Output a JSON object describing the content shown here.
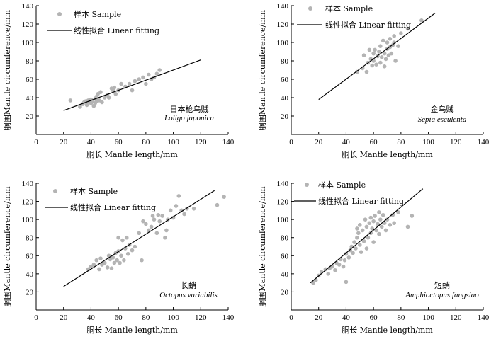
{
  "chart_data": [
    {
      "type": "scatter",
      "xlabel": "胴长 Mantle length/mm",
      "ylabel": "胴围Mantle circumference/mm",
      "xlim": [
        0,
        140
      ],
      "ylim": [
        0,
        140
      ],
      "xticks": [
        0,
        20,
        40,
        60,
        80,
        100,
        120,
        140
      ],
      "yticks": [
        20,
        40,
        60,
        80,
        100,
        120,
        140
      ],
      "legend": {
        "placement": "top-left",
        "sample_label": "样本 Sample",
        "fit_label": "线性拟合 Linear fitting"
      },
      "species_cn": "日本枪乌贼",
      "species_latin": "Loligo japonica",
      "series": [
        {
          "name": "样本 Sample",
          "kind": "points",
          "points": [
            [
              25,
              37
            ],
            [
              32,
              30
            ],
            [
              34,
              33
            ],
            [
              35,
              35
            ],
            [
              36,
              36
            ],
            [
              37,
              32
            ],
            [
              38,
              37
            ],
            [
              39,
              35
            ],
            [
              40,
              38
            ],
            [
              40,
              34
            ],
            [
              41,
              36
            ],
            [
              42,
              31
            ],
            [
              43,
              39
            ],
            [
              43,
              34
            ],
            [
              44,
              41
            ],
            [
              44,
              36
            ],
            [
              45,
              44
            ],
            [
              45,
              39
            ],
            [
              46,
              37
            ],
            [
              47,
              46
            ],
            [
              48,
              35
            ],
            [
              50,
              40
            ],
            [
              52,
              43
            ],
            [
              53,
              40
            ],
            [
              55,
              50
            ],
            [
              56,
              48
            ],
            [
              57,
              51
            ],
            [
              58,
              44
            ],
            [
              60,
              48
            ],
            [
              62,
              55
            ],
            [
              65,
              52
            ],
            [
              68,
              55
            ],
            [
              70,
              48
            ],
            [
              72,
              58
            ],
            [
              75,
              60
            ],
            [
              78,
              62
            ],
            [
              80,
              55
            ],
            [
              82,
              65
            ],
            [
              84,
              60
            ],
            [
              86,
              62
            ],
            [
              88,
              66
            ],
            [
              90,
              70
            ]
          ]
        },
        {
          "name": "线性拟合 Linear fitting",
          "kind": "line",
          "points": [
            [
              20,
              26
            ],
            [
              120,
              81
            ]
          ]
        }
      ]
    },
    {
      "type": "scatter",
      "xlabel": "胴长 Mantle length/mm",
      "ylabel": "胴围Mantle circumference/mm",
      "xlim": [
        0,
        140
      ],
      "ylim": [
        0,
        140
      ],
      "xticks": [
        0,
        20,
        40,
        60,
        80,
        100,
        120,
        140
      ],
      "yticks": [
        20,
        40,
        60,
        80,
        100,
        120,
        140
      ],
      "legend": {
        "placement": "top-left",
        "sample_label": "样本 Sample",
        "fit_label": "线性拟合 Linear fitting"
      },
      "species_cn": "金乌贼",
      "species_latin": "Sepia esculenta",
      "series": [
        {
          "name": "样本 Sample",
          "kind": "points",
          "points": [
            [
              48,
              68
            ],
            [
              52,
              72
            ],
            [
              53,
              86
            ],
            [
              55,
              68
            ],
            [
              56,
              78
            ],
            [
              57,
              92
            ],
            [
              58,
              82
            ],
            [
              59,
              75
            ],
            [
              60,
              88
            ],
            [
              60,
              80
            ],
            [
              61,
              92
            ],
            [
              62,
              76
            ],
            [
              63,
              85
            ],
            [
              64,
              90
            ],
            [
              65,
              78
            ],
            [
              65,
              96
            ],
            [
              66,
              84
            ],
            [
              67,
              102
            ],
            [
              68,
              88
            ],
            [
              68,
              74
            ],
            [
              69,
              82
            ],
            [
              70,
              93
            ],
            [
              70,
              100
            ],
            [
              71,
              86
            ],
            [
              72,
              104
            ],
            [
              72,
              95
            ],
            [
              73,
              88
            ],
            [
              74,
              97
            ],
            [
              75,
              100
            ],
            [
              75,
              107
            ],
            [
              76,
              80
            ],
            [
              78,
              96
            ],
            [
              80,
              110
            ],
            [
              85,
              115
            ],
            [
              95,
              124
            ]
          ]
        },
        {
          "name": "线性拟合 Linear fitting",
          "kind": "line",
          "points": [
            [
              20,
              38
            ],
            [
              105,
              132
            ]
          ]
        }
      ]
    },
    {
      "type": "scatter",
      "xlabel": "胴长 Mantle length/mm",
      "ylabel": "胴围Mantle circumference/mm",
      "xlim": [
        0,
        140
      ],
      "ylim": [
        0,
        140
      ],
      "xticks": [
        0,
        20,
        40,
        60,
        80,
        100,
        120,
        140
      ],
      "yticks": [
        20,
        40,
        60,
        80,
        100,
        120,
        140
      ],
      "legend": {
        "placement": "top-left",
        "sample_label": "样本 Sample",
        "fit_label": "线性拟合 Linear fitting"
      },
      "species_cn": "长蛸",
      "species_latin": "Octopus variabilis",
      "series": [
        {
          "name": "样本 Sample",
          "kind": "points",
          "points": [
            [
              38,
              45
            ],
            [
              40,
              48
            ],
            [
              42,
              50
            ],
            [
              44,
              55
            ],
            [
              46,
              45
            ],
            [
              47,
              57
            ],
            [
              48,
              50
            ],
            [
              50,
              52
            ],
            [
              52,
              47
            ],
            [
              53,
              60
            ],
            [
              54,
              56
            ],
            [
              55,
              46
            ],
            [
              56,
              58
            ],
            [
              57,
              52
            ],
            [
              58,
              63
            ],
            [
              59,
              55
            ],
            [
              60,
              65
            ],
            [
              60,
              80
            ],
            [
              61,
              52
            ],
            [
              62,
              60
            ],
            [
              63,
              77
            ],
            [
              64,
              55
            ],
            [
              65,
              68
            ],
            [
              66,
              80
            ],
            [
              67,
              62
            ],
            [
              68,
              72
            ],
            [
              70,
              66
            ],
            [
              72,
              70
            ],
            [
              75,
              85
            ],
            [
              77,
              55
            ],
            [
              78,
              98
            ],
            [
              80,
              95
            ],
            [
              82,
              88
            ],
            [
              84,
              92
            ],
            [
              85,
              104
            ],
            [
              86,
              100
            ],
            [
              88,
              85
            ],
            [
              89,
              105
            ],
            [
              90,
              98
            ],
            [
              92,
              104
            ],
            [
              94,
              80
            ],
            [
              95,
              88
            ],
            [
              96,
              100
            ],
            [
              98,
              110
            ],
            [
              100,
              102
            ],
            [
              102,
              115
            ],
            [
              104,
              126
            ],
            [
              106,
              110
            ],
            [
              108,
              106
            ],
            [
              110,
              112
            ],
            [
              115,
              112
            ],
            [
              132,
              116
            ],
            [
              137,
              125
            ]
          ]
        },
        {
          "name": "线性拟合 Linear fitting",
          "kind": "line",
          "points": [
            [
              20,
              26
            ],
            [
              130,
              132
            ]
          ]
        }
      ]
    },
    {
      "type": "scatter",
      "xlabel": "胴长 Mantle length/mm",
      "ylabel": "胴围Mantle circumference/mm",
      "xlim": [
        0,
        140
      ],
      "ylim": [
        0,
        140
      ],
      "xticks": [
        0,
        20,
        40,
        60,
        80,
        100,
        120,
        140
      ],
      "yticks": [
        20,
        40,
        60,
        80,
        100,
        120,
        140
      ],
      "legend": {
        "placement": "top-left",
        "sample_label": "样本 Sample",
        "fit_label": "线性拟合 Linear fitting"
      },
      "species_cn": "短蛸",
      "species_latin": "Amphioctopus fangsiao",
      "series": [
        {
          "name": "样本 Sample",
          "kind": "points",
          "points": [
            [
              16,
              30
            ],
            [
              18,
              33
            ],
            [
              20,
              38
            ],
            [
              22,
              42
            ],
            [
              25,
              45
            ],
            [
              27,
              40
            ],
            [
              28,
              46
            ],
            [
              30,
              48
            ],
            [
              32,
              44
            ],
            [
              33,
              52
            ],
            [
              35,
              50
            ],
            [
              36,
              56
            ],
            [
              38,
              48
            ],
            [
              39,
              55
            ],
            [
              40,
              31
            ],
            [
              40,
              62
            ],
            [
              42,
              58
            ],
            [
              43,
              66
            ],
            [
              44,
              70
            ],
            [
              45,
              63
            ],
            [
              46,
              75
            ],
            [
              47,
              68
            ],
            [
              48,
              80
            ],
            [
              48,
              90
            ],
            [
              49,
              85
            ],
            [
              50,
              72
            ],
            [
              50,
              94
            ],
            [
              51,
              64
            ],
            [
              52,
              88
            ],
            [
              53,
              76
            ],
            [
              54,
              100
            ],
            [
              55,
              68
            ],
            [
              55,
              92
            ],
            [
              56,
              80
            ],
            [
              57,
              96
            ],
            [
              58,
              85
            ],
            [
              58,
              102
            ],
            [
              59,
              90
            ],
            [
              60,
              75
            ],
            [
              60,
              98
            ],
            [
              61,
              104
            ],
            [
              62,
              88
            ],
            [
              63,
              95
            ],
            [
              64,
              84
            ],
            [
              64,
              108
            ],
            [
              65,
              100
            ],
            [
              66,
              92
            ],
            [
              67,
              105
            ],
            [
              68,
              96
            ],
            [
              69,
              88
            ],
            [
              70,
              100
            ],
            [
              72,
              94
            ],
            [
              74,
              105
            ],
            [
              75,
              96
            ],
            [
              78,
              108
            ],
            [
              85,
              92
            ],
            [
              88,
              104
            ]
          ]
        },
        {
          "name": "线性拟合 Linear fitting",
          "kind": "line",
          "points": [
            [
              14,
              30
            ],
            [
              96,
              134
            ]
          ]
        }
      ]
    }
  ]
}
